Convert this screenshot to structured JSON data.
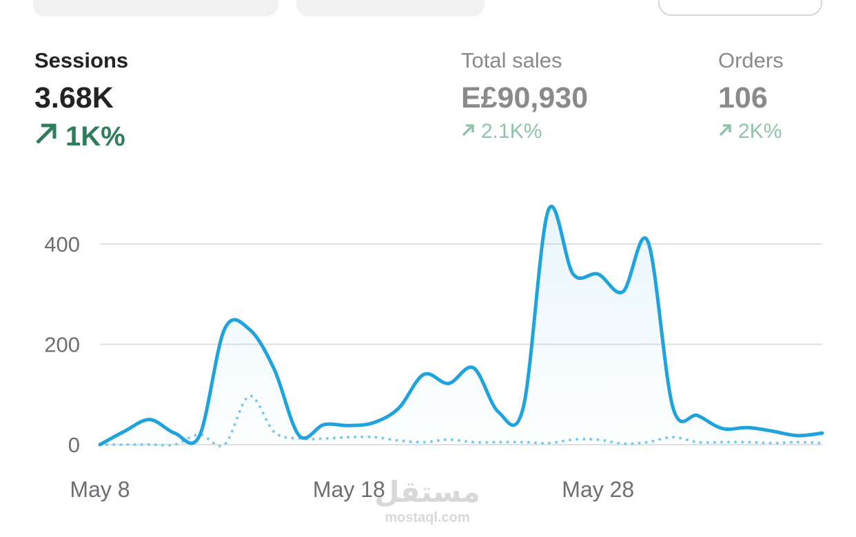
{
  "metrics": [
    {
      "label": "Sessions",
      "value": "3.68K",
      "change": "1K%"
    },
    {
      "label": "Total sales",
      "value": "E£90,930",
      "change": "2.1K%"
    },
    {
      "label": "Orders",
      "value": "106",
      "change": "2K%"
    }
  ],
  "watermark": {
    "logo": "مستقل",
    "site": "mostaql.com"
  },
  "chart_data": {
    "type": "line",
    "categories": [
      "May 8",
      null,
      null,
      null,
      null,
      null,
      null,
      null,
      null,
      null,
      "May 18",
      null,
      null,
      null,
      null,
      null,
      null,
      null,
      null,
      null,
      "May 28",
      null,
      null,
      null,
      null,
      null,
      null,
      null,
      null,
      null
    ],
    "series": [
      {
        "color": "#1fa3de",
        "style": "solid",
        "values": [
          0,
          27,
          50,
          23,
          18,
          230,
          230,
          150,
          18,
          40,
          38,
          44,
          73,
          140,
          122,
          153,
          65,
          75,
          467,
          340,
          340,
          305,
          405,
          75,
          58,
          32,
          34,
          27,
          18,
          23
        ]
      },
      {
        "color": "#7ccbe8",
        "style": "dotted",
        "values": [
          0,
          0,
          0,
          0,
          20,
          0,
          97,
          25,
          12,
          12,
          15,
          15,
          8,
          5,
          10,
          5,
          5,
          5,
          3,
          10,
          10,
          2,
          5,
          15,
          5,
          5,
          5,
          3,
          5,
          3
        ]
      }
    ],
    "ylim": [
      0,
      480
    ],
    "yticks": [
      0,
      200,
      400
    ],
    "grid": true
  }
}
